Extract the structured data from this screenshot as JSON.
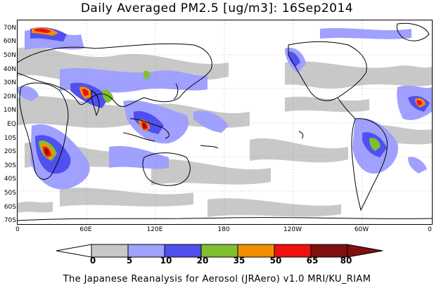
{
  "title": "Daily Averaged PM2.5 [ug/m3]: 16Sep2014",
  "footer": "The Japanese Reanalysis for Aerosol (JRAero) v1.0 MRI/KU_RIAM",
  "lat_labels": [
    "70N",
    "60N",
    "50N",
    "40N",
    "30N",
    "20N",
    "10N",
    "EQ",
    "10S",
    "20S",
    "30S",
    "40S",
    "50S",
    "60S",
    "70S"
  ],
  "lon_labels": [
    "0",
    "60E",
    "120E",
    "180",
    "120W",
    "60W",
    "0"
  ],
  "colorbar": {
    "levels": [
      "0",
      "5",
      "10",
      "20",
      "35",
      "50",
      "65",
      "80"
    ],
    "colors": [
      "#ffffff",
      "#c8c8c8",
      "#a0a0ff",
      "#5050f0",
      "#80c030",
      "#f09000",
      "#f01010",
      "#801010"
    ]
  }
}
